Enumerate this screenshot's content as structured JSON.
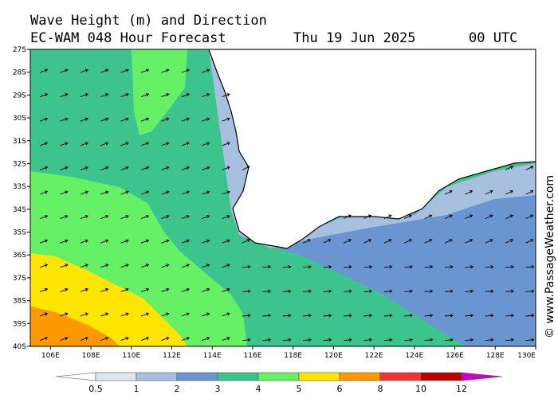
{
  "header": {
    "title": "Wave Height (m) and Direction",
    "model": "EC-WAM 048 Hour Forecast",
    "date": "Thu 19 Jun 2025",
    "time": "00 UTC"
  },
  "map": {
    "lat_labels": [
      "27S",
      "28S",
      "29S",
      "30S",
      "31S",
      "32S",
      "33S",
      "34S",
      "35S",
      "36S",
      "37S",
      "38S",
      "39S",
      "40S"
    ],
    "lon_labels": [
      "106E",
      "108E",
      "110E",
      "112E",
      "114E",
      "116E",
      "118E",
      "120E",
      "122E",
      "124E",
      "126E",
      "128E",
      "130E"
    ]
  },
  "legend": {
    "labels": [
      "0.5",
      "1",
      "2",
      "3",
      "4",
      "5",
      "6",
      "8",
      "10",
      "12"
    ]
  },
  "credit": "© www.PassageWeather.com"
}
